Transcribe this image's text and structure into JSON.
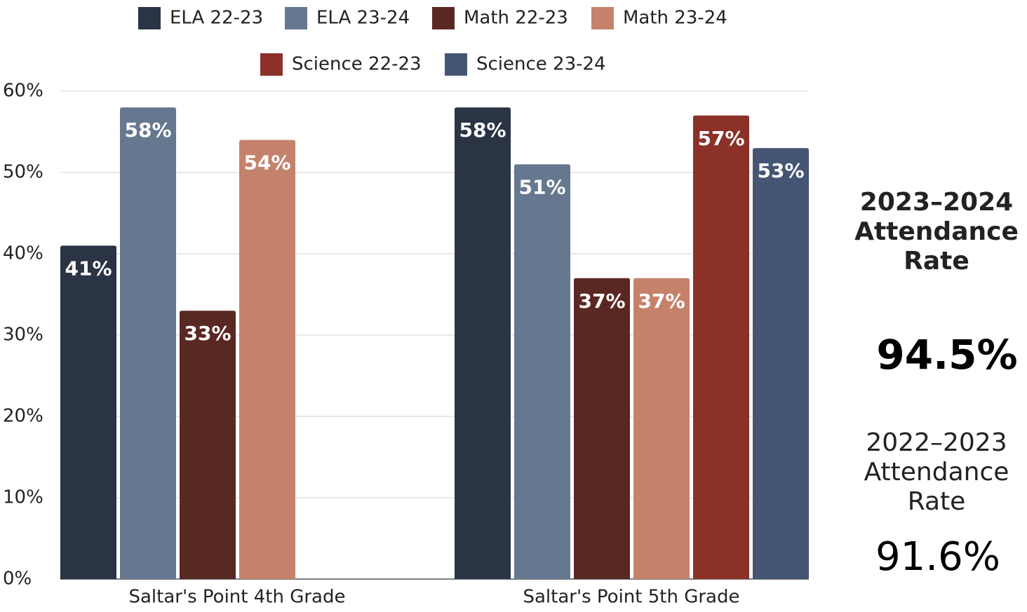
{
  "chart_data": {
    "type": "bar",
    "categories": [
      "Saltar's Point 4th Grade",
      "Saltar's Point 5th Grade"
    ],
    "series": [
      {
        "name": "ELA 22-23",
        "color": "#2b3445",
        "values": [
          41,
          58
        ],
        "value_labels": [
          "41%",
          "58%"
        ]
      },
      {
        "name": "ELA 23-24",
        "color": "#66788f",
        "values": [
          58,
          51
        ],
        "value_labels": [
          "58%",
          "51%"
        ]
      },
      {
        "name": "Math 22-23",
        "color": "#5a2822",
        "values": [
          33,
          37
        ],
        "value_labels": [
          "33%",
          "37%"
        ]
      },
      {
        "name": "Math 23-24",
        "color": "#c5826b",
        "values": [
          54,
          37
        ],
        "value_labels": [
          "54%",
          "37%"
        ]
      },
      {
        "name": "Science 22-23",
        "color": "#8b3128",
        "values": [
          null,
          57
        ],
        "value_labels": [
          null,
          "57%"
        ]
      },
      {
        "name": "Science 23-24",
        "color": "#445673",
        "values": [
          null,
          53
        ],
        "value_labels": [
          null,
          "53%"
        ]
      }
    ],
    "ylim": [
      0,
      60
    ],
    "yticks": [
      {
        "value": 0,
        "label": "0%"
      },
      {
        "value": 10,
        "label": "10%"
      },
      {
        "value": 20,
        "label": "20%"
      },
      {
        "value": 30,
        "label": "30%"
      },
      {
        "value": 40,
        "label": "40%"
      },
      {
        "value": 50,
        "label": "50%"
      },
      {
        "value": 60,
        "label": "60%"
      }
    ],
    "grid": true,
    "legend": "top"
  },
  "attendance": [
    {
      "label_lines": [
        "2023–2024",
        "Attendance",
        "Rate"
      ],
      "value": "94.5%"
    },
    {
      "label_lines": [
        "2022–2023",
        "Attendance",
        "Rate"
      ],
      "value": "91.6%"
    }
  ]
}
